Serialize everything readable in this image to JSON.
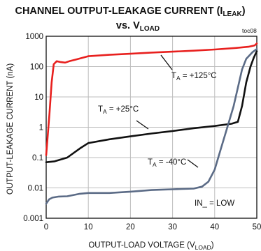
{
  "chart_data": {
    "type": "line",
    "title_line1": "CHANNEL OUTPUT-LEAKAGE CURRENT (I",
    "title_line1_sub": "LEAK",
    "title_line1_end": ")",
    "title_line2": "vs. V",
    "title_line2_sub": "LOAD",
    "figure_code": "toc08",
    "xlabel": "OUTPUT-LOAD VOLTAGE (V",
    "xlabel_sub": "LOAD",
    "xlabel_end": ")",
    "ylabel": "OUTPUT-LEAKAGE CURRENT (nA)",
    "xlim": [
      0,
      50
    ],
    "ylim": [
      0.001,
      1000
    ],
    "yscale": "log",
    "x_ticks": [
      "0",
      "10",
      "20",
      "30",
      "40",
      "50"
    ],
    "y_ticks": [
      "0.001",
      "0.01",
      "0.1",
      "1",
      "10",
      "100",
      "1000"
    ],
    "grid": true,
    "annotations": {
      "in_low": "IN_ = LOW",
      "t125_prefix": "T",
      "t125_sub": "A",
      "t125_value": " = +125°C",
      "t25_prefix": "T",
      "t25_sub": "A",
      "t25_value": " = +25°C",
      "tm40_prefix": "T",
      "tm40_sub": "A",
      "tm40_value": " = -40°C"
    },
    "series": [
      {
        "color": "#e8201e",
        "points": [
          [
            0,
            0.12
          ],
          [
            0.3,
            0.4
          ],
          [
            0.8,
            3
          ],
          [
            1.3,
            30
          ],
          [
            1.8,
            120
          ],
          [
            2.5,
            150
          ],
          [
            3.5,
            140
          ],
          [
            4.5,
            135
          ],
          [
            5.5,
            150
          ],
          [
            7,
            170
          ],
          [
            10,
            220
          ],
          [
            15,
            245
          ],
          [
            20,
            265
          ],
          [
            25,
            290
          ],
          [
            30,
            310
          ],
          [
            35,
            335
          ],
          [
            40,
            365
          ],
          [
            45,
            410
          ],
          [
            48,
            450
          ],
          [
            49.5,
            500
          ],
          [
            50,
            580
          ]
        ]
      },
      {
        "color": "#111111",
        "points": [
          [
            0,
            0.07
          ],
          [
            2,
            0.075
          ],
          [
            5,
            0.1
          ],
          [
            8,
            0.2
          ],
          [
            10,
            0.3
          ],
          [
            15,
            0.4
          ],
          [
            20,
            0.5
          ],
          [
            25,
            0.62
          ],
          [
            30,
            0.75
          ],
          [
            35,
            0.93
          ],
          [
            40,
            1.1
          ],
          [
            44,
            1.3
          ],
          [
            45.5,
            1.5
          ],
          [
            46.5,
            5
          ],
          [
            47.5,
            30
          ],
          [
            48.5,
            100
          ],
          [
            49.3,
            200
          ],
          [
            50,
            320
          ]
        ]
      },
      {
        "color": "#5b6b86",
        "points": [
          [
            0,
            0.003
          ],
          [
            0.7,
            0.0042
          ],
          [
            1.5,
            0.0048
          ],
          [
            3,
            0.0052
          ],
          [
            5,
            0.0053
          ],
          [
            8,
            0.0064
          ],
          [
            10,
            0.0068
          ],
          [
            15,
            0.0068
          ],
          [
            20,
            0.0075
          ],
          [
            25,
            0.0085
          ],
          [
            30,
            0.009
          ],
          [
            35,
            0.0095
          ],
          [
            37,
            0.011
          ],
          [
            38.5,
            0.016
          ],
          [
            40,
            0.04
          ],
          [
            41.5,
            0.2
          ],
          [
            43,
            1
          ],
          [
            44.5,
            5
          ],
          [
            45.5,
            20
          ],
          [
            46.5,
            80
          ],
          [
            47.5,
            180
          ],
          [
            49,
            300
          ],
          [
            50,
            380
          ]
        ]
      }
    ],
    "colors": {
      "axis": "#111111",
      "grid": "#bdbdbd",
      "red": "#e8201e",
      "black": "#111111",
      "gray": "#5b6b86"
    }
  }
}
